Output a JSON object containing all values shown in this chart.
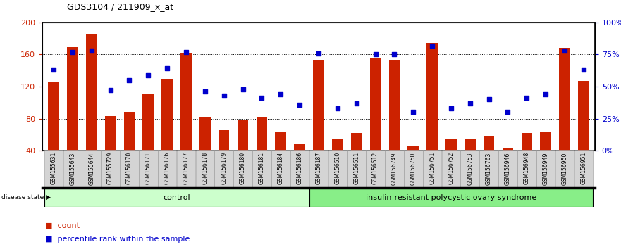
{
  "title": "GDS3104 / 211909_x_at",
  "samples": [
    "GSM155631",
    "GSM155643",
    "GSM155644",
    "GSM155729",
    "GSM156170",
    "GSM156171",
    "GSM156176",
    "GSM156177",
    "GSM156178",
    "GSM156179",
    "GSM156180",
    "GSM156181",
    "GSM156184",
    "GSM156186",
    "GSM156187",
    "GSM156510",
    "GSM156511",
    "GSM156512",
    "GSM156749",
    "GSM156750",
    "GSM156751",
    "GSM156752",
    "GSM156753",
    "GSM156763",
    "GSM156946",
    "GSM156948",
    "GSM156949",
    "GSM156950",
    "GSM156951"
  ],
  "counts": [
    126,
    169,
    185,
    83,
    88,
    110,
    129,
    161,
    81,
    66,
    79,
    82,
    63,
    48,
    153,
    55,
    62,
    155,
    153,
    45,
    174,
    55,
    55,
    58,
    43,
    62,
    64,
    168,
    127
  ],
  "percentile": [
    63,
    77,
    78,
    47,
    55,
    59,
    64,
    77,
    46,
    43,
    48,
    41,
    44,
    36,
    76,
    33,
    37,
    75,
    75,
    30,
    82,
    33,
    37,
    40,
    30,
    41,
    44,
    78,
    63
  ],
  "n_control": 14,
  "group_labels": [
    "control",
    "insulin-resistant polycystic ovary syndrome"
  ],
  "bar_color": "#cc2200",
  "dot_color": "#0000cc",
  "ylim_left": [
    40,
    200
  ],
  "ylim_right": [
    0,
    100
  ],
  "yticks_left": [
    40,
    80,
    120,
    160,
    200
  ],
  "yticks_right": [
    0,
    25,
    50,
    75,
    100
  ],
  "ytick_labels_right": [
    "0%",
    "25%",
    "50%",
    "75%",
    "100%"
  ],
  "control_bg": "#ccffcc",
  "disease_bg": "#88ee88",
  "legend_count_label": "count",
  "legend_pct_label": "percentile rank within the sample",
  "disease_state_label": "disease state"
}
